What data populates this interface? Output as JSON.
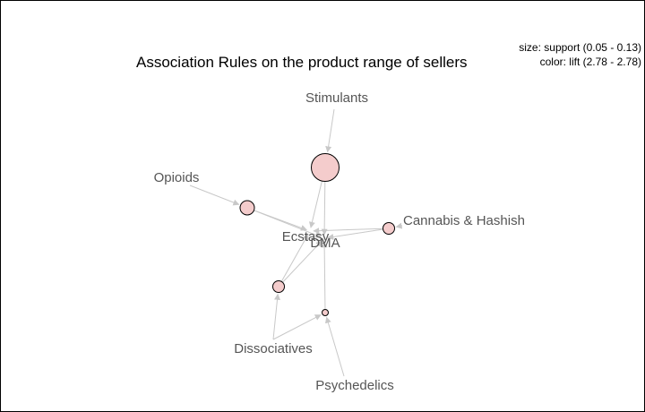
{
  "title": "Association Rules on the product range of sellers",
  "legend": {
    "size_text": "size: support (0.05 - 0.13)",
    "color_text": "color: lift (2.78 - 2.78)"
  },
  "colors": {
    "rule_fill": "#f4cccc",
    "rule_stroke": "#000000",
    "edge": "#c8c8c8",
    "label": "#555555"
  },
  "items": [
    {
      "id": "stimulants",
      "label": "Stimulants"
    },
    {
      "id": "opioids",
      "label": "Opioids"
    },
    {
      "id": "ecstasy",
      "label": "Ecstasy"
    },
    {
      "id": "dma",
      "label": "DMA"
    },
    {
      "id": "cannabis",
      "label": "Cannabis & Hashish"
    },
    {
      "id": "dissociatives",
      "label": "Dissociatives"
    },
    {
      "id": "psychedelics",
      "label": "Psychedelics"
    }
  ],
  "rules": [
    {
      "id": "rule-1",
      "support": 0.13,
      "lift": 2.78,
      "lhs": [
        "stimulants"
      ],
      "rhs": [
        "ecstasy",
        "dma"
      ]
    },
    {
      "id": "rule-2",
      "support": 0.08,
      "lift": 2.78,
      "lhs": [
        "opioids"
      ],
      "rhs": [
        "ecstasy",
        "dma"
      ]
    },
    {
      "id": "rule-3",
      "support": 0.07,
      "lift": 2.78,
      "lhs": [
        "cannabis"
      ],
      "rhs": [
        "ecstasy",
        "dma"
      ]
    },
    {
      "id": "rule-4",
      "support": 0.07,
      "lift": 2.78,
      "lhs": [
        "dissociatives"
      ],
      "rhs": [
        "ecstasy",
        "dma"
      ]
    },
    {
      "id": "rule-5",
      "support": 0.05,
      "lift": 2.78,
      "lhs": [
        "dissociatives",
        "psychedelics"
      ],
      "rhs": [
        "dma"
      ]
    }
  ]
}
